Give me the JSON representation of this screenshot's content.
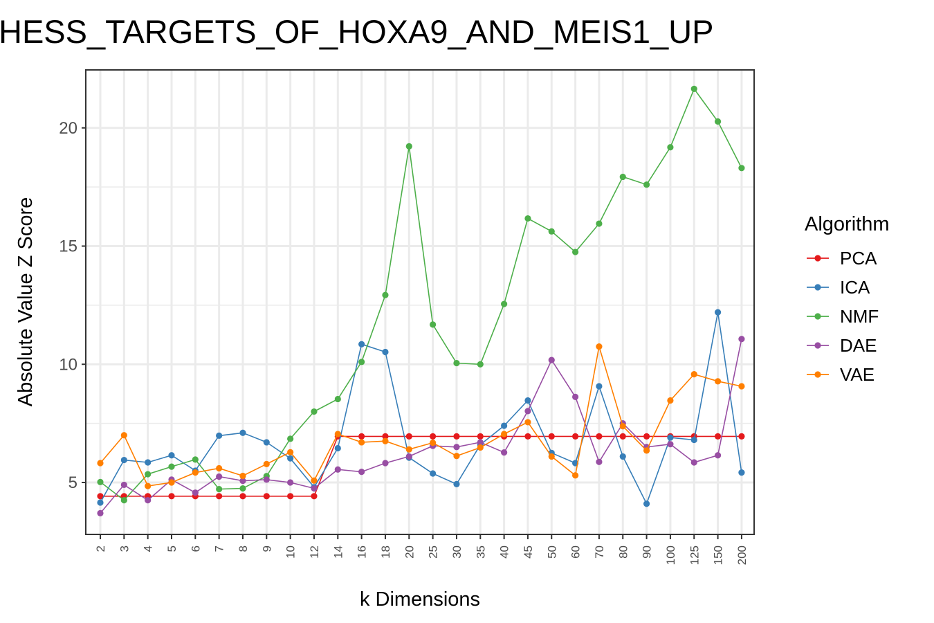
{
  "chart_data": {
    "type": "line",
    "title": "HESS_TARGETS_OF_HOXA9_AND_MEIS1_UP",
    "xlabel": "k Dimensions",
    "ylabel": "Absolute Value Z Score",
    "categories": [
      "2",
      "3",
      "4",
      "5",
      "6",
      "7",
      "8",
      "9",
      "10",
      "12",
      "14",
      "16",
      "18",
      "20",
      "25",
      "30",
      "35",
      "40",
      "45",
      "50",
      "60",
      "70",
      "80",
      "90",
      "100",
      "125",
      "150",
      "200"
    ],
    "ylim": [
      2.8,
      22.5
    ],
    "yticks": [
      5,
      10,
      15,
      20
    ],
    "grid": true,
    "legend": {
      "title": "Algorithm",
      "position": "right"
    },
    "series": [
      {
        "name": "PCA",
        "color": "#E41A1C",
        "values": [
          4.42,
          4.42,
          4.42,
          4.42,
          4.42,
          4.42,
          4.42,
          4.42,
          4.42,
          4.42,
          6.95,
          6.95,
          6.95,
          6.95,
          6.95,
          6.95,
          6.95,
          6.95,
          6.95,
          6.95,
          6.95,
          6.95,
          6.95,
          6.95,
          6.95,
          6.95,
          6.95,
          6.95
        ]
      },
      {
        "name": "ICA",
        "color": "#377EB8",
        "values": [
          4.15,
          5.95,
          5.85,
          6.15,
          5.5,
          6.98,
          7.1,
          6.7,
          6.02,
          4.8,
          6.45,
          10.85,
          10.52,
          6.05,
          5.38,
          4.93,
          6.6,
          7.4,
          8.47,
          6.25,
          5.82,
          9.07,
          6.1,
          4.1,
          6.9,
          6.8,
          12.2,
          5.42
        ]
      },
      {
        "name": "NMF",
        "color": "#4DAF4A",
        "values": [
          5.02,
          4.25,
          5.35,
          5.67,
          5.97,
          4.72,
          4.75,
          5.27,
          6.85,
          8.0,
          8.53,
          10.1,
          12.93,
          19.22,
          11.68,
          10.05,
          10.0,
          12.55,
          16.17,
          15.62,
          14.75,
          15.95,
          17.93,
          17.6,
          19.18,
          21.65,
          20.27,
          18.3
        ]
      },
      {
        "name": "DAE",
        "color": "#984EA3",
        "values": [
          3.7,
          4.9,
          4.25,
          5.12,
          4.57,
          5.25,
          5.07,
          5.12,
          5.0,
          4.75,
          5.55,
          5.45,
          5.82,
          6.1,
          6.55,
          6.5,
          6.7,
          6.27,
          8.02,
          10.18,
          8.62,
          5.87,
          7.5,
          6.5,
          6.62,
          5.85,
          6.15,
          11.07
        ]
      },
      {
        "name": "VAE",
        "color": "#FF7F00",
        "values": [
          5.82,
          7.0,
          4.85,
          5.0,
          5.42,
          5.6,
          5.28,
          5.78,
          6.28,
          5.08,
          7.05,
          6.7,
          6.75,
          6.4,
          6.68,
          6.12,
          6.48,
          7.05,
          7.55,
          6.1,
          5.3,
          10.75,
          7.38,
          6.35,
          8.47,
          9.58,
          9.28,
          9.07
        ]
      }
    ]
  }
}
